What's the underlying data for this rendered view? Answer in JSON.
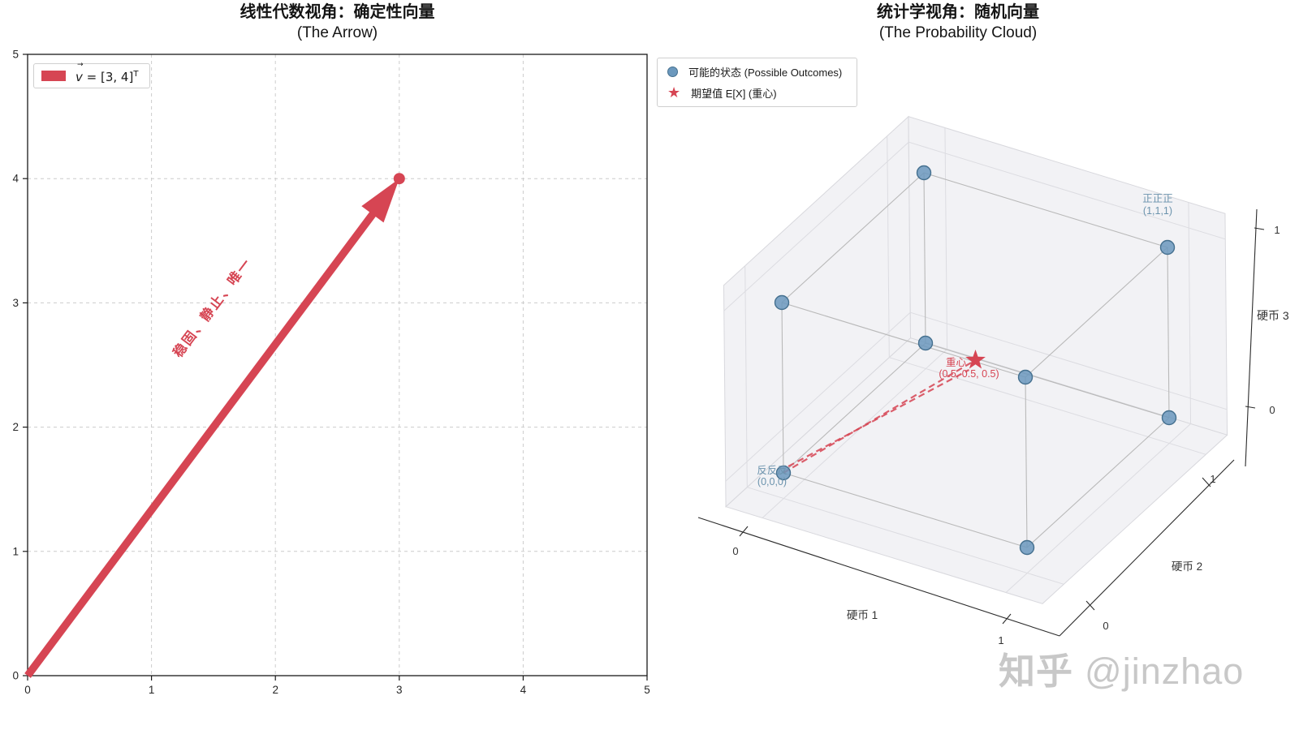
{
  "chart_data": [
    {
      "type": "quiver2d",
      "title": "线性代数视角：确定性向量",
      "subtitle": "(The Arrow)",
      "vector": [
        3,
        4
      ],
      "origin": [
        0,
        0
      ],
      "xlim": [
        0,
        5
      ],
      "ylim": [
        0,
        5
      ],
      "xticks": [
        0,
        1,
        2,
        3,
        4,
        5
      ],
      "yticks": [
        0,
        1,
        2,
        3,
        4,
        5
      ],
      "grid": true,
      "endpoint_marker": [
        3,
        4
      ],
      "annotation": {
        "text": "稳固、静止、唯一",
        "color": "#d64553",
        "rotation_deg": -53,
        "position": [
          1.52,
          2.94
        ]
      },
      "legend": {
        "swatch_color": "#d64553",
        "label_var": "v",
        "label_arrow": "→",
        "label_eq": " = [3, 4]",
        "label_sup": "T"
      }
    },
    {
      "type": "scatter3d",
      "title": "统计学视角：随机向量",
      "subtitle": "(The Probability Cloud)",
      "points": [
        [
          0,
          0,
          0
        ],
        [
          1,
          0,
          0
        ],
        [
          0,
          1,
          0
        ],
        [
          0,
          0,
          1
        ],
        [
          1,
          1,
          0
        ],
        [
          1,
          0,
          1
        ],
        [
          0,
          1,
          1
        ],
        [
          1,
          1,
          1
        ]
      ],
      "mean": [
        0.5,
        0.5,
        0.5
      ],
      "xlabel": "硬币 1",
      "ylabel": "硬币 2",
      "zlabel": "硬币 3",
      "ticks": [
        0,
        1
      ],
      "point_color": "#6b98bd",
      "point_edge_color": "#45708f",
      "mean_color": "#d64553",
      "labels": [
        {
          "text": "正正正",
          "text2": "(1,1,1)",
          "anchor": [
            1,
            1,
            1
          ],
          "color": "#6b93ad"
        },
        {
          "text": "反反反",
          "text2": "(0,0,0)",
          "anchor": [
            0,
            0,
            0
          ],
          "color": "#6b93ad"
        },
        {
          "text": "重心",
          "text2": "(0.5, 0.5, 0.5)",
          "anchor": [
            0.5,
            0.5,
            0.5
          ],
          "color": "#d64553"
        }
      ],
      "legend": [
        {
          "marker": "circle",
          "color": "#6b98bd",
          "label": "可能的状态 (Possible Outcomes)"
        },
        {
          "marker": "star",
          "color": "#d64553",
          "label": "期望值 E[X] (重心)"
        }
      ]
    }
  ],
  "watermark": {
    "brand": "知乎",
    "handle": "@jinzhao"
  }
}
